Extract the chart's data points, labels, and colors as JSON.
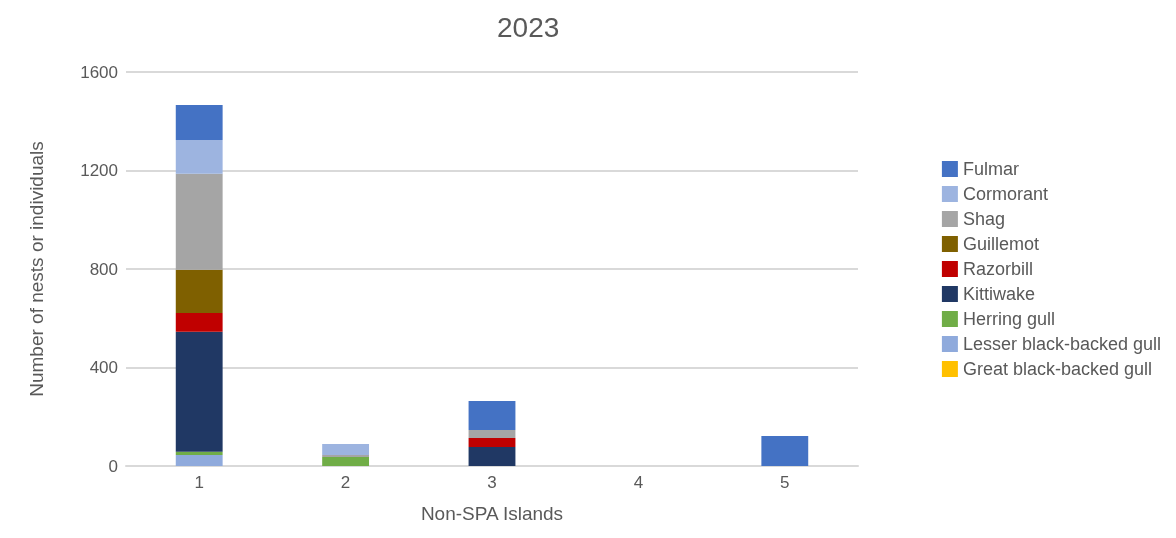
{
  "chart_data": {
    "type": "bar",
    "title": "2023",
    "xlabel": "Non-SPA Islands",
    "ylabel": "Number of nests or individuals",
    "categories": [
      "1",
      "2",
      "3",
      "4",
      "5"
    ],
    "stacked": true,
    "ylim": [
      0,
      1600
    ],
    "yticks": [
      0,
      400,
      800,
      1200,
      1600
    ],
    "grid": "y",
    "legend": "right",
    "series": [
      {
        "name": "Great black-backed gull",
        "color": "#ffc000",
        "values": [
          null,
          null,
          null,
          null,
          null
        ]
      },
      {
        "name": "Lesser black-backed gull",
        "color": "#8faadc",
        "values": [
          45,
          null,
          null,
          null,
          null
        ]
      },
      {
        "name": "Herring gull",
        "color": "#70ad47",
        "values": [
          13,
          37,
          null,
          null,
          null
        ]
      },
      {
        "name": "Kittiwake",
        "color": "#203864",
        "values": [
          487,
          null,
          77,
          null,
          null
        ]
      },
      {
        "name": "Razorbill",
        "color": "#c00000",
        "values": [
          76,
          null,
          37,
          null,
          null
        ]
      },
      {
        "name": "Guillemot",
        "color": "#7f6000",
        "values": [
          176,
          null,
          null,
          null,
          null
        ]
      },
      {
        "name": "Shag",
        "color": "#a5a5a5",
        "values": [
          390,
          8,
          32,
          null,
          null
        ]
      },
      {
        "name": "Cormorant",
        "color": "#9db4e0",
        "values": [
          137,
          44,
          null,
          null,
          null
        ]
      },
      {
        "name": "Fulmar",
        "color": "#4472c4",
        "values": [
          142,
          null,
          118,
          null,
          122
        ]
      }
    ]
  }
}
